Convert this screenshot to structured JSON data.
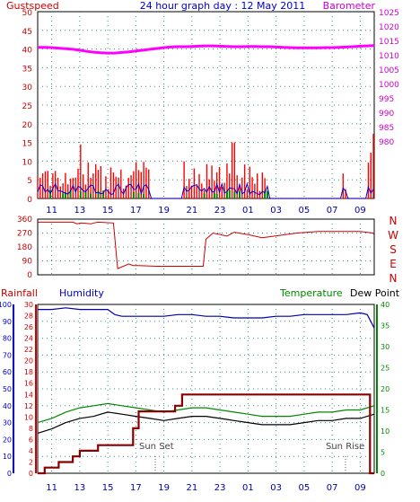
{
  "chart_data": [
    {
      "type": "line",
      "title": "24 hour graph day : 12 May 2011",
      "left_label": "Gustspeed",
      "right_label": "Barometer",
      "x_ticks": [
        "11",
        "13",
        "15",
        "17",
        "19",
        "21",
        "23",
        "01",
        "03",
        "05",
        "07",
        "09"
      ],
      "left_ticks": [
        "0",
        "5",
        "10",
        "15",
        "20",
        "25",
        "30",
        "35",
        "40",
        "45",
        "50"
      ],
      "right_ticks": [
        "980",
        "985",
        "990",
        "995",
        "1000",
        "1005",
        "1010",
        "1015",
        "1020",
        "1025"
      ],
      "ylim_left": [
        0,
        50
      ],
      "ylim_right": [
        960,
        1025
      ],
      "colors": {
        "gust": "#ff0000",
        "wind": "#0000cc",
        "rain": "#008800",
        "barometer": "#ff00ff",
        "axis_left": "#cc0000",
        "axis_right": "#cc00cc",
        "title": "#0000cc"
      },
      "series": [
        {
          "name": "Barometer",
          "x": [
            10,
            10.5,
            11,
            11.5,
            12,
            12.5,
            13,
            13.5,
            14,
            14.5,
            15,
            15.5,
            16,
            16.5,
            17,
            17.5,
            18,
            18.5,
            19,
            19.5,
            20,
            20.5,
            21,
            21.5,
            22,
            22.5,
            23,
            23.5,
            24,
            24.5,
            25,
            25.5,
            26,
            26.5,
            27,
            27.5,
            28,
            28.5,
            29,
            29.5,
            30,
            30.5,
            31,
            31.5,
            32,
            32.5,
            33,
            33.5,
            34
          ],
          "y": [
            1012.6,
            1012.6,
            1012.5,
            1012.3,
            1012.1,
            1011.9,
            1011.6,
            1011.2,
            1010.9,
            1010.7,
            1010.6,
            1010.6,
            1010.8,
            1011.0,
            1011.3,
            1011.6,
            1011.9,
            1012.2,
            1012.5,
            1012.7,
            1012.8,
            1012.8,
            1012.9,
            1013.0,
            1013.1,
            1013.1,
            1013.0,
            1012.9,
            1012.8,
            1012.8,
            1012.9,
            1012.9,
            1012.8,
            1012.8,
            1012.7,
            1012.6,
            1012.5,
            1012.4,
            1012.4,
            1012.4,
            1012.4,
            1012.5,
            1012.5,
            1012.6,
            1012.7,
            1012.8,
            1013.0,
            1013.1,
            1013.2
          ]
        }
      ]
    },
    {
      "type": "line",
      "right_labels": [
        "N",
        "W",
        "S",
        "E",
        "N"
      ],
      "y_ticks": [
        "0",
        "90",
        "180",
        "270",
        "360"
      ],
      "ylim": [
        0,
        360
      ],
      "colors": {
        "direction": "#cc0000",
        "axis": "#cc0000"
      },
      "series": [
        {
          "name": "Wind direction",
          "x": [
            10,
            12.5,
            12.8,
            13.1,
            13.8,
            14,
            14.3,
            15.4,
            15.7,
            16.5,
            16.8,
            17.2,
            18.5,
            20,
            21.8,
            22,
            22.5,
            23.5,
            24,
            25,
            26,
            28.5,
            30,
            31.5,
            32,
            33,
            33.9,
            34
          ],
          "y": [
            340,
            340,
            330,
            335,
            330,
            335,
            340,
            335,
            40,
            70,
            60,
            60,
            55,
            55,
            55,
            230,
            270,
            250,
            275,
            260,
            240,
            270,
            280,
            280,
            280,
            280,
            270,
            260
          ]
        }
      ]
    },
    {
      "type": "line",
      "labels": {
        "rainfall": "Rainfall",
        "humidity": "Humidity",
        "temperature": "Temperature",
        "dewpoint": "Dew Point",
        "sunset": "Sun Set",
        "sunrise": "Sun Rise"
      },
      "x_ticks": [
        "11",
        "13",
        "15",
        "17",
        "19",
        "21",
        "23",
        "01",
        "03",
        "05",
        "07",
        "09"
      ],
      "hum_ticks": [
        "0",
        "10",
        "20",
        "30",
        "40",
        "50",
        "60",
        "70",
        "80",
        "90",
        "100"
      ],
      "rain_ticks": [
        "0",
        "2",
        "4",
        "6",
        "8",
        "10",
        "12",
        "14",
        "16",
        "18",
        "20",
        "22",
        "24",
        "26",
        "28",
        "30"
      ],
      "temp_ticks": [
        "0",
        "5",
        "10",
        "15",
        "20",
        "25",
        "30",
        "35",
        "40"
      ],
      "ylim_humidity": [
        0,
        100
      ],
      "ylim_temperature": [
        0,
        40
      ],
      "colors": {
        "humidity": "#0000aa",
        "temperature": "#008800",
        "dewpoint": "#000000",
        "rainfall": "#880000",
        "axis_hum": "#0000cc",
        "axis_rain": "#cc0000",
        "axis_temp": "#008800",
        "label_rain": "#cc0000",
        "label_hum": "#0000cc",
        "label_temp": "#008800",
        "label_dew": "#000000"
      },
      "series": [
        {
          "name": "Humidity",
          "x": [
            10,
            11,
            12,
            13,
            14,
            15,
            15.5,
            16,
            17,
            18,
            19,
            20,
            21,
            22,
            23,
            24,
            25,
            26,
            27,
            28,
            29,
            30,
            31,
            32,
            33,
            33.5,
            34
          ],
          "y": [
            97,
            97,
            98,
            97,
            97,
            97,
            94,
            93,
            93,
            93,
            93,
            94,
            94,
            93,
            93,
            92,
            92,
            92,
            93,
            93,
            94,
            94,
            94,
            94,
            95,
            94,
            86
          ]
        },
        {
          "name": "Temperature",
          "x": [
            10,
            11,
            12,
            13,
            14,
            15,
            16,
            17,
            18,
            19,
            20,
            21,
            22,
            23,
            24,
            25,
            26,
            27,
            28,
            29,
            30,
            31,
            32,
            33,
            34
          ],
          "y": [
            12,
            13,
            14.5,
            15.5,
            16,
            16.5,
            16,
            15.5,
            15,
            14.5,
            15,
            15.5,
            15.5,
            15,
            14.5,
            14,
            13.5,
            13.5,
            13.5,
            14,
            14.5,
            14.5,
            15,
            15,
            16
          ]
        },
        {
          "name": "Dew Point",
          "x": [
            10,
            11,
            12,
            13,
            14,
            15,
            16,
            17,
            18,
            19,
            20,
            21,
            22,
            23,
            24,
            25,
            26,
            27,
            28,
            29,
            30,
            31,
            32,
            33,
            34
          ],
          "y": [
            9.5,
            10.5,
            12,
            13,
            13.5,
            14.5,
            14,
            13.5,
            13,
            12.5,
            13,
            13.5,
            13.5,
            13,
            12.5,
            12,
            11.5,
            11.5,
            11.5,
            12,
            12.5,
            12.5,
            13,
            13,
            14
          ]
        },
        {
          "name": "Rainfall",
          "x": [
            10,
            10.5,
            10.5,
            11.5,
            11.5,
            12.5,
            12.5,
            13,
            13,
            14.3,
            14.3,
            16.8,
            16.8,
            17.2,
            17.2,
            19.8,
            19.8,
            20.3,
            20.3,
            33.7,
            33.7,
            34
          ],
          "y": [
            0,
            0,
            1,
            1,
            2,
            2,
            3,
            3,
            4,
            4,
            5,
            5,
            8,
            8,
            11,
            11,
            12,
            12,
            14,
            14,
            0,
            0
          ]
        }
      ]
    }
  ]
}
